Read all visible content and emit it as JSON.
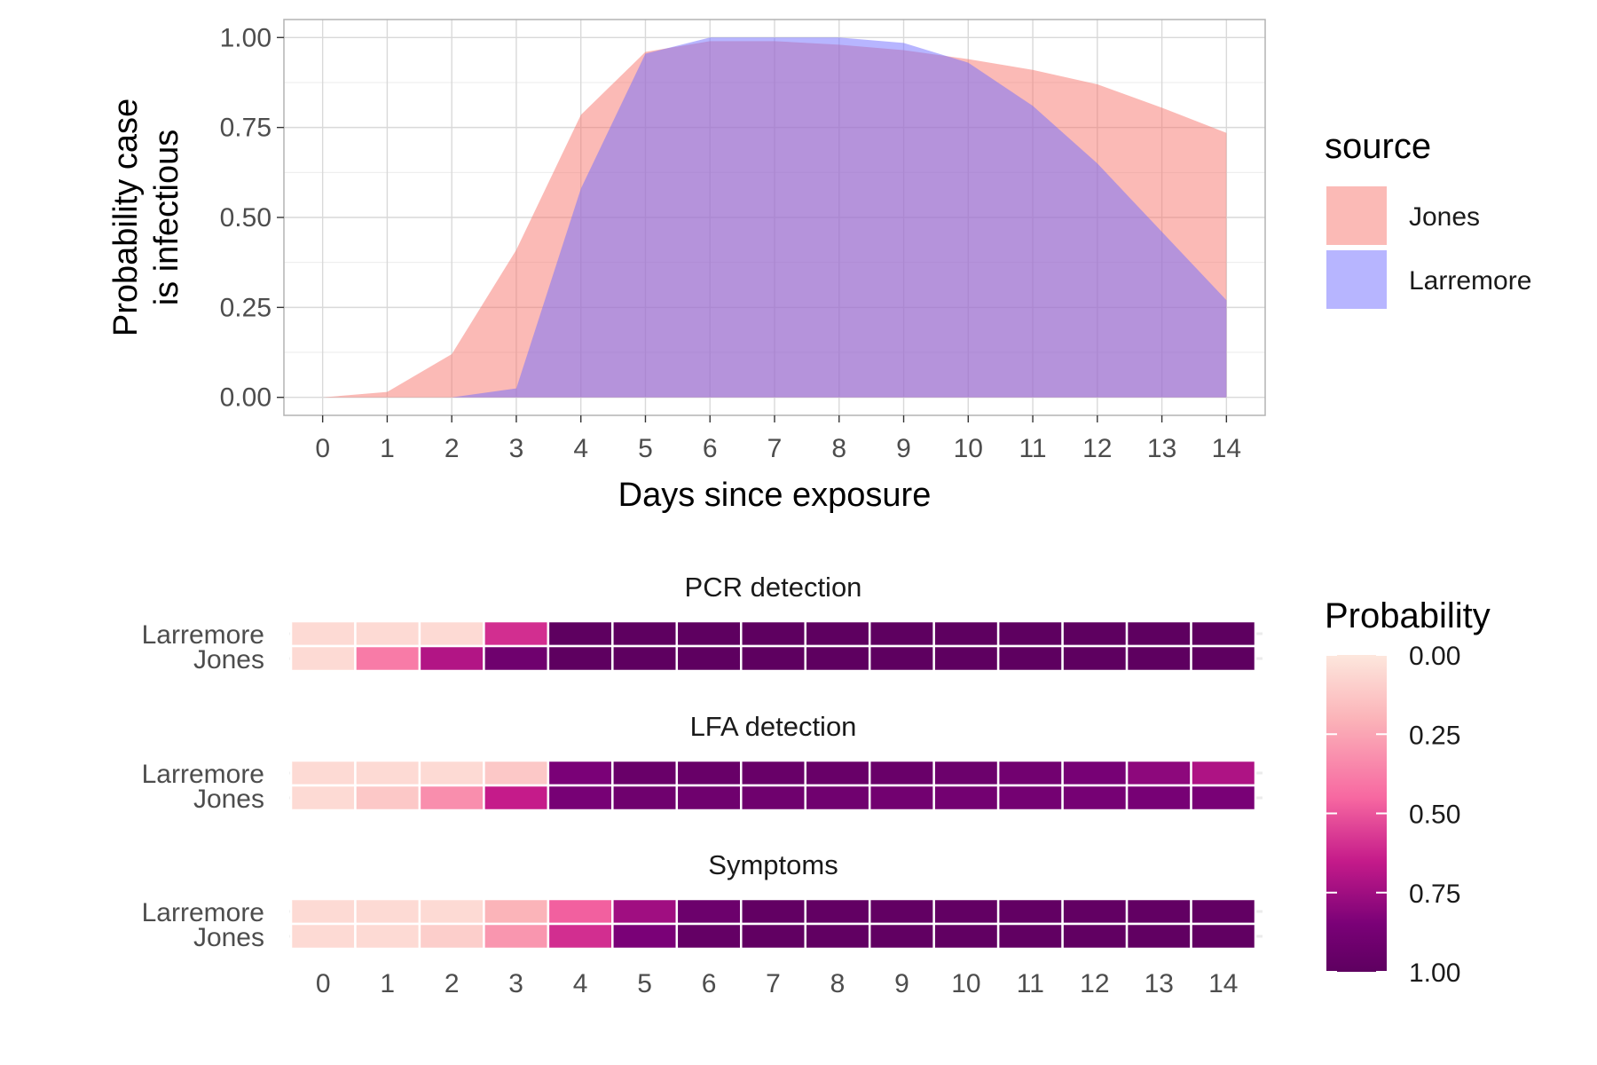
{
  "chart_data": [
    {
      "type": "area",
      "title": "",
      "xlabel": "Days since exposure",
      "ylabel_lines": [
        "Probability case",
        "is infectious"
      ],
      "x": [
        0,
        1,
        2,
        3,
        4,
        5,
        6,
        7,
        8,
        9,
        10,
        11,
        12,
        13,
        14
      ],
      "xlim": [
        -0.6,
        14.6
      ],
      "ylim": [
        -0.05,
        1.05
      ],
      "y_ticks": [
        "0.00",
        "0.25",
        "0.50",
        "0.75",
        "1.00"
      ],
      "y_tick_values": [
        0,
        0.25,
        0.5,
        0.75,
        1
      ],
      "grid": true,
      "legend": {
        "title": "source",
        "position": "right"
      },
      "series": [
        {
          "name": "Jones",
          "color": "#F8766D",
          "values": [
            0,
            0.015,
            0.12,
            0.41,
            0.785,
            0.96,
            0.99,
            0.99,
            0.98,
            0.965,
            0.94,
            0.91,
            0.87,
            0.805,
            0.735
          ]
        },
        {
          "name": "Larremore",
          "color": "#6F6BFF",
          "values": [
            0,
            0,
            0,
            0.025,
            0.58,
            0.955,
            1.0,
            1.0,
            1.0,
            0.985,
            0.93,
            0.81,
            0.65,
            0.46,
            0.27
          ]
        }
      ]
    },
    {
      "type": "heatmap",
      "x": [
        0,
        1,
        2,
        3,
        4,
        5,
        6,
        7,
        8,
        9,
        10,
        11,
        12,
        13,
        14
      ],
      "rows": [
        "Larremore",
        "Jones"
      ],
      "legend": {
        "title": "Probability",
        "position": "right",
        "ticks": [
          "0.00",
          "0.25",
          "0.50",
          "0.75",
          "1.00"
        ],
        "tick_values": [
          0,
          0.25,
          0.5,
          0.75,
          1
        ]
      },
      "colorscale": [
        "#FDE7DD",
        "#FBB4B9",
        "#F768A1",
        "#C51B8A",
        "#7A0177",
        "#5E0060"
      ],
      "panels": [
        {
          "title": "PCR detection",
          "values": {
            "Larremore": [
              0.05,
              0.05,
              0.05,
              0.55,
              1,
              1,
              1,
              1,
              1,
              1,
              1,
              1,
              1,
              1,
              1
            ],
            "Jones": [
              0.05,
              0.35,
              0.65,
              0.88,
              1,
              1,
              1,
              1,
              1,
              1,
              1,
              1,
              1,
              1,
              1
            ]
          }
        },
        {
          "title": "LFA detection",
          "values": {
            "Larremore": [
              0.05,
              0.05,
              0.05,
              0.12,
              0.8,
              0.92,
              0.93,
              0.93,
              0.93,
              0.92,
              0.9,
              0.86,
              0.82,
              0.75,
              0.66
            ],
            "Jones": [
              0.05,
              0.12,
              0.3,
              0.6,
              0.82,
              0.88,
              0.88,
              0.88,
              0.87,
              0.86,
              0.85,
              0.84,
              0.83,
              0.82,
              0.81
            ]
          }
        },
        {
          "title": "Symptoms",
          "values": {
            "Larremore": [
              0.05,
              0.05,
              0.05,
              0.2,
              0.42,
              0.7,
              0.9,
              0.97,
              0.97,
              0.97,
              0.97,
              0.97,
              0.97,
              0.97,
              0.97
            ],
            "Jones": [
              0.05,
              0.05,
              0.1,
              0.28,
              0.55,
              0.8,
              0.96,
              0.98,
              0.98,
              0.98,
              0.98,
              0.98,
              0.98,
              0.98,
              0.98
            ]
          }
        }
      ]
    }
  ]
}
